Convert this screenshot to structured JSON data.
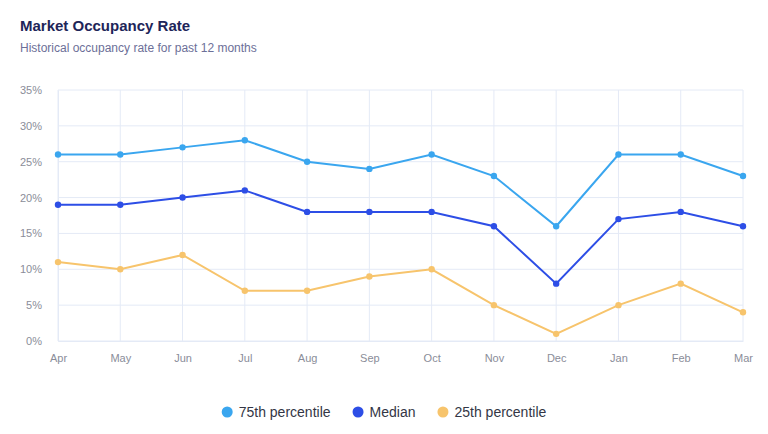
{
  "chart_data": {
    "type": "line",
    "title": "Market Occupancy Rate",
    "subtitle": "Historical occupancy rate for past 12 months",
    "categories": [
      "Apr",
      "May",
      "Jun",
      "Jul",
      "Aug",
      "Sep",
      "Oct",
      "Nov",
      "Dec",
      "Jan",
      "Feb",
      "Mar"
    ],
    "series": [
      {
        "name": "75th percentile",
        "color": "#3aa6ef",
        "marker": "circle",
        "values": [
          26,
          26,
          27,
          28,
          25,
          24,
          26,
          23,
          16,
          26,
          26,
          23
        ]
      },
      {
        "name": "Median",
        "color": "#2d4ee6",
        "marker": "circle",
        "values": [
          19,
          19,
          20,
          21,
          18,
          18,
          18,
          16,
          8,
          17,
          18,
          16
        ]
      },
      {
        "name": "25th percentile",
        "color": "#f7c46c",
        "marker": "circle",
        "values": [
          11,
          10,
          12,
          7,
          7,
          9,
          10,
          5,
          1,
          5,
          8,
          4
        ]
      }
    ],
    "ylim": [
      0,
      35
    ],
    "yticks": [
      {
        "value": 0,
        "label": "0%"
      },
      {
        "value": 5,
        "label": "5%"
      },
      {
        "value": 10,
        "label": "10%"
      },
      {
        "value": 15,
        "label": "15%"
      },
      {
        "value": 20,
        "label": "20%"
      },
      {
        "value": 25,
        "label": "25%"
      },
      {
        "value": 30,
        "label": "30%"
      },
      {
        "value": 35,
        "label": "35%"
      }
    ],
    "grid": true,
    "legend": "bottom"
  }
}
